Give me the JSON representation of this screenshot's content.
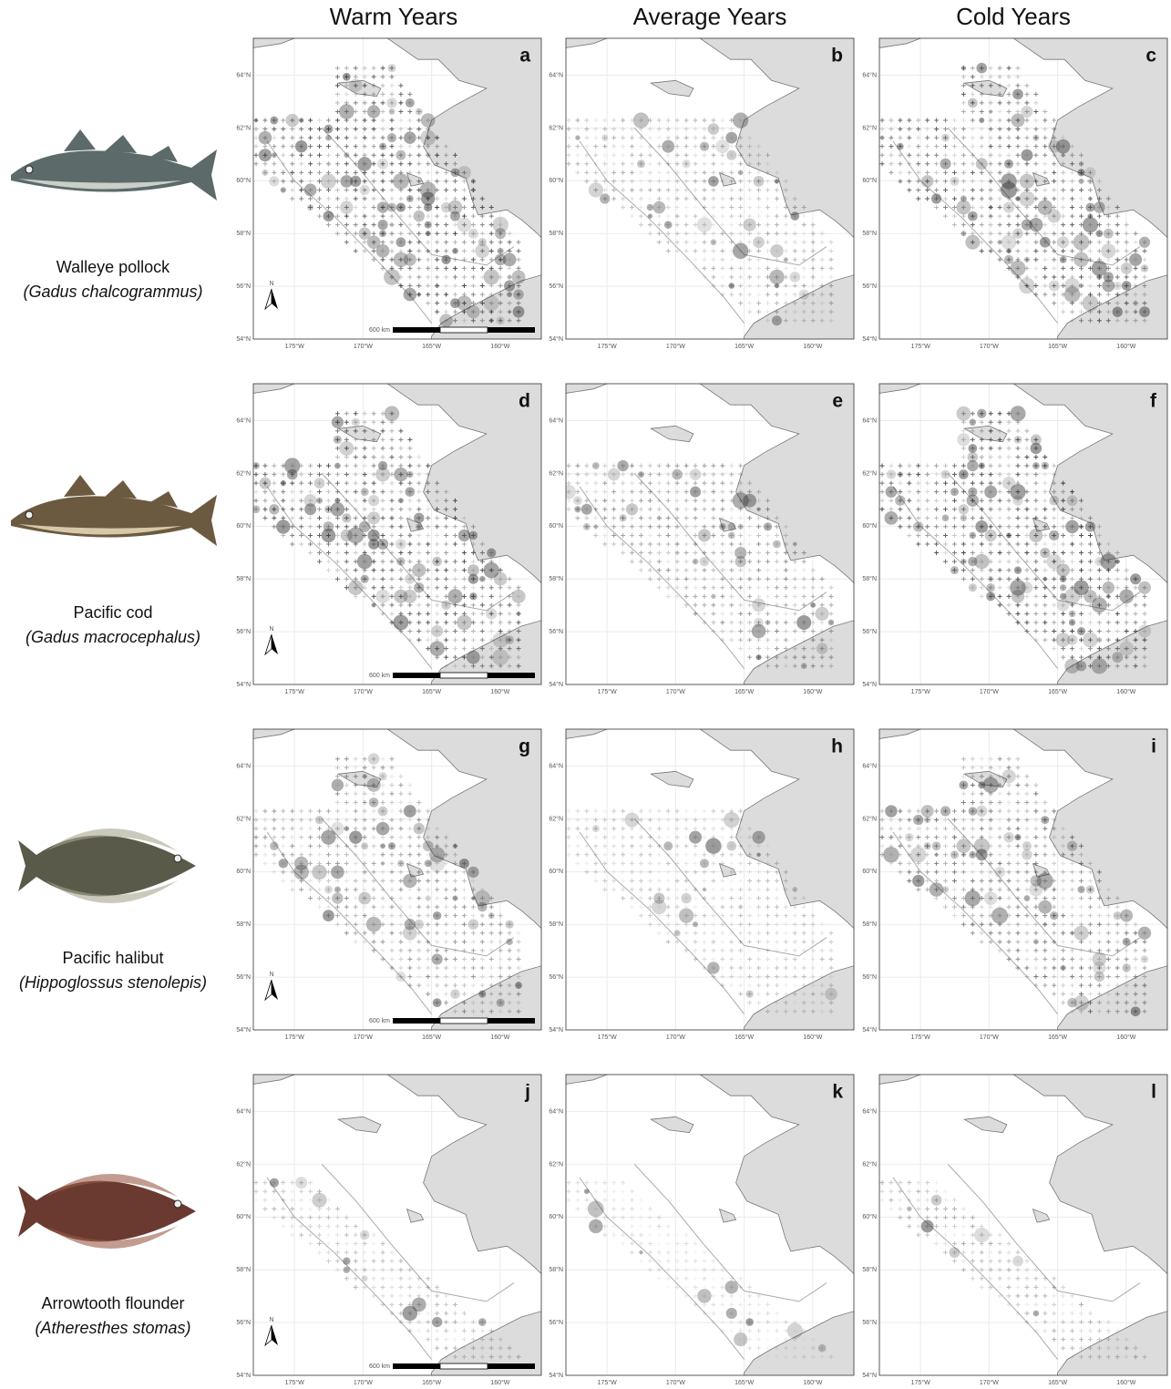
{
  "columns": [
    "Warm Years",
    "Average Years",
    "Cold Years"
  ],
  "species": [
    {
      "common": "Walleye pollock",
      "scientific": "(Gadus chalcogrammus)"
    },
    {
      "common": "Pacific cod",
      "scientific": "(Gadus macrocephalus)"
    },
    {
      "common": "Pacific halibut",
      "scientific": "(Hippoglossus stenolepis)"
    },
    {
      "common": "Arrowtooth flounder",
      "scientific": "(Atheresthes stomas)"
    }
  ],
  "panels": [
    "a",
    "b",
    "c",
    "d",
    "e",
    "f",
    "g",
    "h",
    "i",
    "j",
    "k",
    "l"
  ],
  "map": {
    "lat_labels": [
      "54°N",
      "56°N",
      "58°N",
      "60°N",
      "62°N",
      "64°N"
    ],
    "lon_labels": [
      "175°W",
      "170°W",
      "165°W",
      "160°W"
    ],
    "scale_bar": "600 km",
    "north": "N"
  }
}
